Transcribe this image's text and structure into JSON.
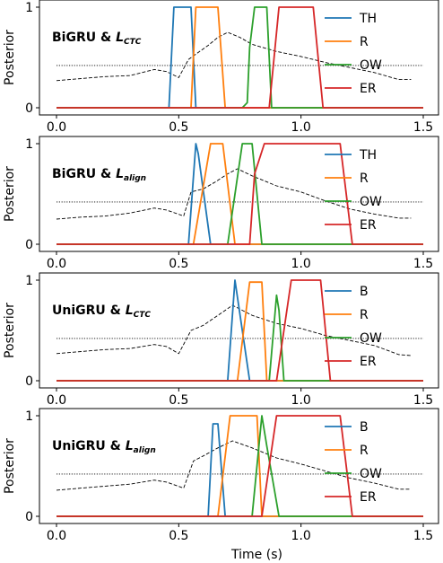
{
  "chart_data": [
    {
      "type": "line",
      "title_prefix": "BiGRU & ",
      "loss_symbol": "L",
      "loss_subscript": "CTC",
      "ylabel": "Posterior",
      "xlim": [
        0.0,
        1.5
      ],
      "ylim": [
        0,
        1
      ],
      "xticks": [
        "0.0",
        "0.5",
        "1.0",
        "1.5"
      ],
      "yticks": [
        "0",
        "1"
      ],
      "show_xticklabels": true,
      "legend_position": "right",
      "threshold": 0.42,
      "series": [
        {
          "name": "TH",
          "color": "#1f77b4",
          "x": [
            0.0,
            0.46,
            0.48,
            0.55,
            0.57,
            1.5
          ],
          "y": [
            0,
            0,
            1,
            1,
            0,
            0
          ]
        },
        {
          "name": "R",
          "color": "#ff7f0e",
          "x": [
            0.0,
            0.55,
            0.57,
            0.66,
            0.69,
            1.5
          ],
          "y": [
            0,
            0,
            1,
            1,
            0,
            0
          ]
        },
        {
          "name": "OW",
          "color": "#2ca02c",
          "x": [
            0.0,
            0.76,
            0.78,
            0.79,
            0.81,
            0.86,
            0.88,
            1.5
          ],
          "y": [
            0,
            0,
            0.05,
            0.6,
            1,
            1,
            0,
            0
          ]
        },
        {
          "name": "ER",
          "color": "#d62728",
          "x": [
            0.0,
            0.87,
            0.91,
            1.05,
            1.09,
            1.5
          ],
          "y": [
            0,
            0,
            1,
            1,
            0,
            0
          ]
        }
      ],
      "energy": {
        "x": [
          0.0,
          0.1,
          0.2,
          0.3,
          0.4,
          0.45,
          0.5,
          0.54,
          0.58,
          0.62,
          0.66,
          0.7,
          0.75,
          0.8,
          0.9,
          1.0,
          1.1,
          1.2,
          1.3,
          1.4,
          1.45
        ],
        "y": [
          0.27,
          0.29,
          0.31,
          0.32,
          0.38,
          0.36,
          0.3,
          0.48,
          0.55,
          0.62,
          0.7,
          0.75,
          0.7,
          0.63,
          0.56,
          0.51,
          0.45,
          0.4,
          0.35,
          0.28,
          0.28
        ]
      }
    },
    {
      "type": "line",
      "title_prefix": "BiGRU & ",
      "loss_symbol": "L",
      "loss_subscript": "align",
      "ylabel": "Posterior",
      "xlim": [
        0.0,
        1.5
      ],
      "ylim": [
        0,
        1
      ],
      "xticks": [
        "0.0",
        "0.5",
        "1.0",
        "1.5"
      ],
      "yticks": [
        "0",
        "1"
      ],
      "show_xticklabels": true,
      "legend_position": "right",
      "threshold": 0.42,
      "series": [
        {
          "name": "TH",
          "color": "#1f77b4",
          "x": [
            0.0,
            0.54,
            0.57,
            0.58,
            0.63,
            1.5
          ],
          "y": [
            0,
            0,
            1,
            0.9,
            0,
            0
          ]
        },
        {
          "name": "R",
          "color": "#ff7f0e",
          "x": [
            0.0,
            0.56,
            0.63,
            0.68,
            0.73,
            1.5
          ],
          "y": [
            0,
            0,
            1,
            1,
            0,
            0
          ]
        },
        {
          "name": "OW",
          "color": "#2ca02c",
          "x": [
            0.0,
            0.7,
            0.76,
            0.8,
            0.84,
            1.5
          ],
          "y": [
            0,
            0,
            1,
            1,
            0,
            0
          ]
        },
        {
          "name": "ER",
          "color": "#d62728",
          "x": [
            0.0,
            0.79,
            0.81,
            0.85,
            1.16,
            1.21,
            1.5
          ],
          "y": [
            0,
            0,
            0.7,
            1,
            1,
            0,
            0
          ]
        }
      ],
      "energy": {
        "x": [
          0.0,
          0.1,
          0.2,
          0.3,
          0.4,
          0.45,
          0.52,
          0.55,
          0.6,
          0.65,
          0.7,
          0.74,
          0.8,
          0.9,
          1.0,
          1.1,
          1.2,
          1.3,
          1.4,
          1.45
        ],
        "y": [
          0.25,
          0.27,
          0.28,
          0.31,
          0.36,
          0.34,
          0.28,
          0.52,
          0.55,
          0.62,
          0.7,
          0.75,
          0.68,
          0.58,
          0.52,
          0.43,
          0.35,
          0.3,
          0.26,
          0.26
        ]
      }
    },
    {
      "type": "line",
      "title_prefix": "UniGRU & ",
      "loss_symbol": "L",
      "loss_subscript": "CTC",
      "ylabel": "Posterior",
      "xlim": [
        0.0,
        1.5
      ],
      "ylim": [
        0,
        1
      ],
      "xticks": [
        "0.0",
        "0.5",
        "1.0",
        "1.5"
      ],
      "yticks": [
        "0",
        "1"
      ],
      "show_xticklabels": true,
      "legend_position": "right",
      "threshold": 0.42,
      "series": [
        {
          "name": "B",
          "color": "#1f77b4",
          "x": [
            0.0,
            0.7,
            0.73,
            0.76,
            0.79,
            1.5
          ],
          "y": [
            0,
            0,
            1,
            0.5,
            0,
            0
          ]
        },
        {
          "name": "R",
          "color": "#ff7f0e",
          "x": [
            0.0,
            0.74,
            0.79,
            0.84,
            0.86,
            1.5
          ],
          "y": [
            0,
            0,
            0.98,
            0.98,
            0,
            0
          ]
        },
        {
          "name": "OW",
          "color": "#2ca02c",
          "x": [
            0.0,
            0.87,
            0.9,
            0.91,
            0.93,
            1.5
          ],
          "y": [
            0,
            0,
            0.85,
            0.7,
            0,
            0
          ]
        },
        {
          "name": "ER",
          "color": "#d62728",
          "x": [
            0.0,
            0.9,
            0.96,
            1.08,
            1.12,
            1.5
          ],
          "y": [
            0,
            0,
            1,
            1,
            0,
            0
          ]
        }
      ],
      "energy": {
        "x": [
          0.0,
          0.1,
          0.2,
          0.3,
          0.4,
          0.45,
          0.5,
          0.55,
          0.6,
          0.66,
          0.72,
          0.8,
          0.9,
          1.0,
          1.1,
          1.2,
          1.3,
          1.4,
          1.45
        ],
        "y": [
          0.27,
          0.29,
          0.31,
          0.32,
          0.36,
          0.34,
          0.27,
          0.5,
          0.55,
          0.65,
          0.75,
          0.65,
          0.57,
          0.52,
          0.45,
          0.4,
          0.35,
          0.26,
          0.25
        ]
      }
    },
    {
      "type": "line",
      "title_prefix": "UniGRU & ",
      "loss_symbol": "L",
      "loss_subscript": "align",
      "ylabel": "Posterior",
      "xlabel": "Time (s)",
      "xlim": [
        0.0,
        1.5
      ],
      "ylim": [
        0,
        1
      ],
      "xticks": [
        "0.0",
        "0.5",
        "1.0",
        "1.5"
      ],
      "yticks": [
        "0",
        "1"
      ],
      "show_xticklabels": true,
      "legend_position": "right",
      "threshold": 0.42,
      "series": [
        {
          "name": "B",
          "color": "#1f77b4",
          "x": [
            0.0,
            0.62,
            0.64,
            0.66,
            0.69,
            1.5
          ],
          "y": [
            0,
            0,
            0.92,
            0.92,
            0,
            0
          ]
        },
        {
          "name": "R",
          "color": "#ff7f0e",
          "x": [
            0.0,
            0.66,
            0.71,
            0.82,
            0.84,
            1.5
          ],
          "y": [
            0,
            0,
            1,
            1,
            0,
            0
          ]
        },
        {
          "name": "OW",
          "color": "#2ca02c",
          "x": [
            0.0,
            0.8,
            0.84,
            0.86,
            0.91,
            1.5
          ],
          "y": [
            0,
            0,
            1,
            0.7,
            0,
            0
          ]
        },
        {
          "name": "ER",
          "color": "#d62728",
          "x": [
            0.0,
            0.84,
            0.9,
            1.16,
            1.21,
            1.5
          ],
          "y": [
            0,
            0,
            1,
            1,
            0,
            0
          ]
        }
      ],
      "energy": {
        "x": [
          0.0,
          0.1,
          0.2,
          0.3,
          0.4,
          0.45,
          0.52,
          0.56,
          0.6,
          0.66,
          0.72,
          0.8,
          0.9,
          1.0,
          1.1,
          1.2,
          1.3,
          1.4,
          1.45
        ],
        "y": [
          0.26,
          0.28,
          0.3,
          0.32,
          0.36,
          0.34,
          0.28,
          0.55,
          0.6,
          0.68,
          0.75,
          0.68,
          0.58,
          0.52,
          0.45,
          0.38,
          0.33,
          0.27,
          0.27
        ]
      }
    }
  ]
}
